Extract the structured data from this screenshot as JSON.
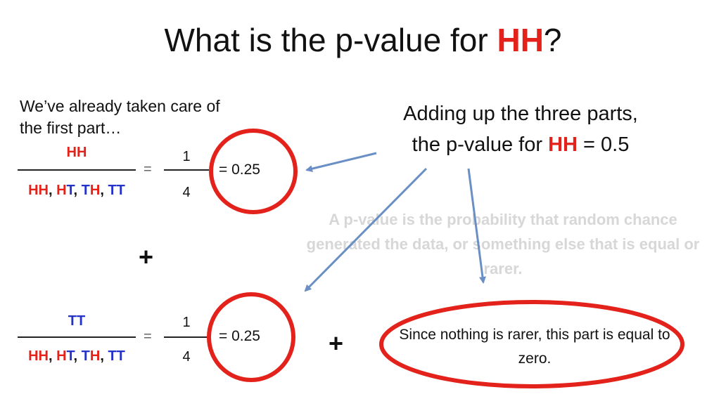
{
  "title": {
    "before": "What is the p-value for ",
    "highlight": "HH",
    "after": "?"
  },
  "note": "We’ve already taken care of the first part…",
  "summary": {
    "line1": "Adding up the three parts,",
    "line2_before": "the p-value for ",
    "line2_highlight": "HH",
    "line2_after": " = 0.5"
  },
  "definition": "A p-value is the probability that random chance generated the data, or something else that is equal or rarer.",
  "fractions": [
    {
      "numerator": "HH",
      "equals": "=",
      "top": "1",
      "bottom": "4",
      "result": "= 0.25"
    },
    {
      "numerator": "TT",
      "equals": "=",
      "top": "1",
      "bottom": "4",
      "result": "= 0.25"
    }
  ],
  "outcomes": {
    "o1": "HH",
    "o2": "HT",
    "o3": "TH",
    "o4": "TT",
    "sep": ", "
  },
  "plus": "+",
  "zero_part": "Since nothing is rarer, this part is equal to zero.",
  "colors": {
    "heads": "#e3231b",
    "tails": "#2432c8",
    "circle": "#e3231b",
    "arrow": "#6a8fc4"
  }
}
